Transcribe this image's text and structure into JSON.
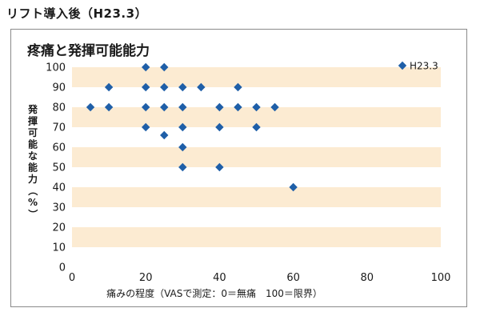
{
  "page": {
    "heading": "リフト導入後（H23.3）"
  },
  "chart_data": {
    "type": "scatter",
    "title": "疼痛と発揮可能能力",
    "xlabel": "痛みの程度（VASで測定：0＝無痛　100＝限界）",
    "ylabel": "発揮可能な能力（%）",
    "xlim": [
      0,
      100
    ],
    "ylim": [
      0,
      100
    ],
    "x_ticks": [
      0,
      20,
      40,
      60,
      80,
      100
    ],
    "y_ticks": [
      0,
      10,
      20,
      30,
      40,
      50,
      60,
      70,
      80,
      90,
      100
    ],
    "grid": "horizontal bands",
    "band_color": "#fcebd2",
    "marker_color": "#1f5fa8",
    "legend_position": "top-right",
    "series": [
      {
        "name": "H23.3",
        "points": [
          [
            20,
            100
          ],
          [
            25,
            100
          ],
          [
            10,
            90
          ],
          [
            20,
            90
          ],
          [
            25,
            90
          ],
          [
            30,
            90
          ],
          [
            35,
            90
          ],
          [
            45,
            90
          ],
          [
            5,
            80
          ],
          [
            10,
            80
          ],
          [
            20,
            80
          ],
          [
            25,
            80
          ],
          [
            30,
            80
          ],
          [
            40,
            80
          ],
          [
            45,
            80
          ],
          [
            50,
            80
          ],
          [
            55,
            80
          ],
          [
            20,
            70
          ],
          [
            30,
            70
          ],
          [
            40,
            70
          ],
          [
            50,
            70
          ],
          [
            25,
            66
          ],
          [
            30,
            60
          ],
          [
            30,
            50
          ],
          [
            40,
            50
          ],
          [
            60,
            40
          ]
        ]
      }
    ]
  }
}
